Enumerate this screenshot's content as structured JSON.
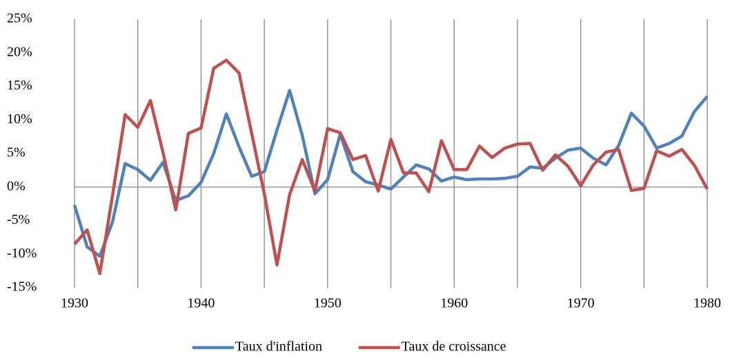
{
  "chart_data": {
    "type": "line",
    "x": [
      1930,
      1931,
      1932,
      1933,
      1934,
      1935,
      1936,
      1937,
      1938,
      1939,
      1940,
      1941,
      1942,
      1943,
      1944,
      1945,
      1946,
      1947,
      1948,
      1949,
      1950,
      1951,
      1952,
      1953,
      1954,
      1955,
      1956,
      1957,
      1958,
      1959,
      1960,
      1961,
      1962,
      1963,
      1964,
      1965,
      1966,
      1967,
      1968,
      1969,
      1970,
      1971,
      1972,
      1973,
      1974,
      1975,
      1976,
      1977,
      1978,
      1979,
      1980
    ],
    "series": [
      {
        "name": "Taux d'inflation",
        "color": "#4f81bd",
        "values": [
          -2.7,
          -8.9,
          -10.3,
          -5.2,
          3.5,
          2.6,
          1.0,
          3.7,
          -2.0,
          -1.3,
          0.7,
          5.0,
          10.9,
          6.0,
          1.6,
          2.3,
          8.5,
          14.4,
          7.7,
          -1.0,
          1.1,
          7.9,
          2.3,
          0.8,
          0.3,
          -0.3,
          1.5,
          3.3,
          2.7,
          0.9,
          1.5,
          1.1,
          1.2,
          1.2,
          1.3,
          1.6,
          3.0,
          2.8,
          4.3,
          5.5,
          5.8,
          4.3,
          3.3,
          6.2,
          11.0,
          9.1,
          5.8,
          6.5,
          7.6,
          11.3,
          13.5
        ]
      },
      {
        "name": "Taux de croissance",
        "color": "#c0504d",
        "values": [
          -8.5,
          -6.4,
          -12.9,
          -1.3,
          10.8,
          8.9,
          12.9,
          5.1,
          -3.4,
          8.0,
          8.8,
          17.7,
          18.9,
          17.0,
          8.0,
          -1.0,
          -11.6,
          -1.1,
          4.1,
          -0.6,
          8.7,
          8.1,
          4.1,
          4.7,
          -0.6,
          7.1,
          2.1,
          2.1,
          -0.7,
          6.9,
          2.6,
          2.6,
          6.1,
          4.4,
          5.8,
          6.4,
          6.5,
          2.5,
          4.8,
          3.1,
          0.2,
          3.3,
          5.2,
          5.6,
          -0.5,
          -0.2,
          5.4,
          4.6,
          5.6,
          3.2,
          -0.3
        ]
      }
    ],
    "xlim": [
      1930,
      1980
    ],
    "xticks": [
      1930,
      1940,
      1950,
      1960,
      1970,
      1980
    ],
    "ylim": [
      -15,
      25
    ],
    "yticks": [
      {
        "value": -15,
        "label": "-15%"
      },
      {
        "value": -10,
        "label": "-10%"
      },
      {
        "value": -5,
        "label": "-5%"
      },
      {
        "value": 0,
        "label": "0%"
      },
      {
        "value": 5,
        "label": "5%"
      },
      {
        "value": 10,
        "label": "10%"
      },
      {
        "value": 15,
        "label": "15%"
      },
      {
        "value": 20,
        "label": "20%"
      },
      {
        "value": 25,
        "label": "25%"
      }
    ],
    "grid": true,
    "legend": "bottom"
  }
}
